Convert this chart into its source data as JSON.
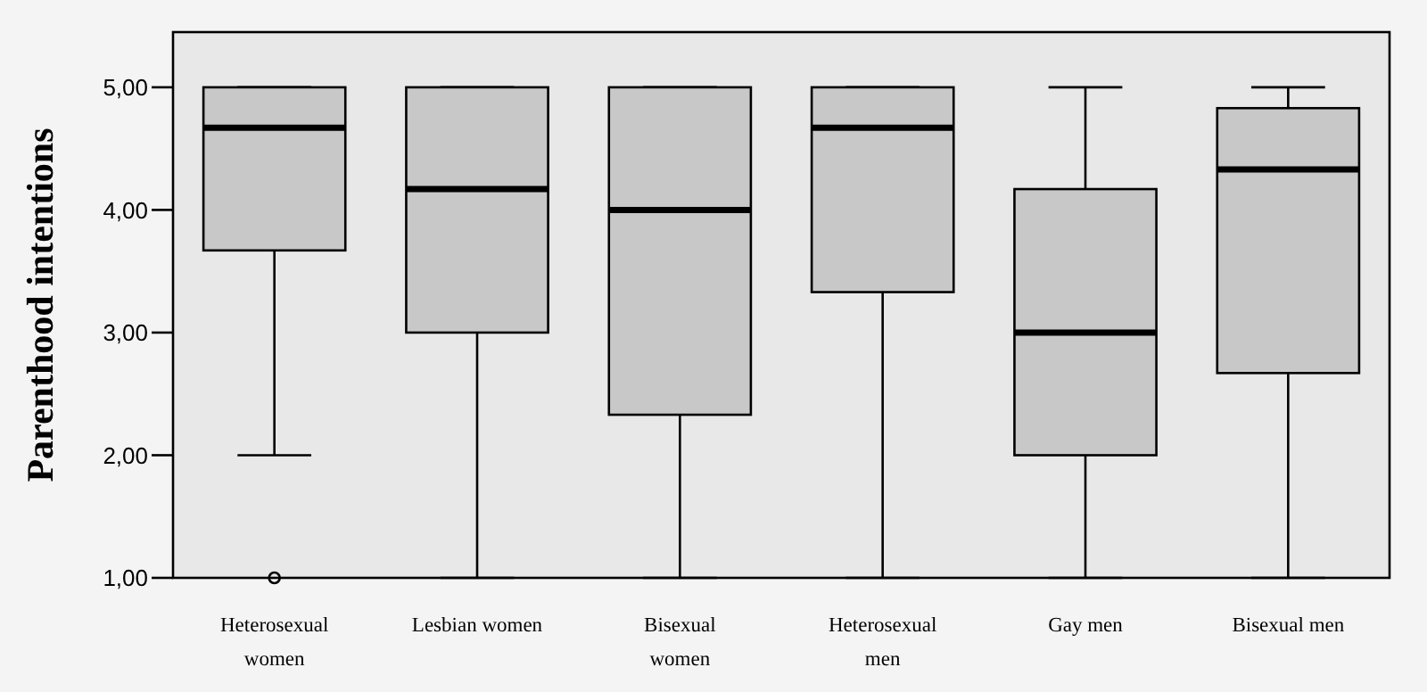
{
  "chart_data": {
    "type": "box",
    "ylabel": "Parenthood intentions",
    "categories": [
      "Heterosexual women",
      "Lesbian women",
      "Bisexual women",
      "Heterosexual men",
      "Gay men",
      "Bisexual men"
    ],
    "boxes": [
      {
        "low": 2,
        "q1": 3.67,
        "median": 4.67,
        "q3": 5,
        "high": 5,
        "outliers": [
          1
        ]
      },
      {
        "low": 1,
        "q1": 3,
        "median": 4.17,
        "q3": 5,
        "high": 5
      },
      {
        "low": 1,
        "q1": 2.33,
        "median": 4,
        "q3": 5,
        "high": 5
      },
      {
        "low": 1,
        "q1": 3.33,
        "median": 4.67,
        "q3": 5,
        "high": 5
      },
      {
        "low": 1,
        "q1": 2,
        "median": 3,
        "q3": 4.17,
        "high": 5
      },
      {
        "low": 1,
        "q1": 2.67,
        "median": 4.33,
        "q3": 4.83,
        "high": 5
      }
    ],
    "color": "#c8c8c8",
    "ylim": [
      1,
      5.45
    ],
    "yticks": [
      {
        "value": 1,
        "label": "1,00"
      },
      {
        "value": 2,
        "label": "2,00"
      },
      {
        "value": 3,
        "label": "3,00"
      },
      {
        "value": 4,
        "label": "4,00"
      },
      {
        "value": 5,
        "label": "5,00"
      }
    ],
    "grid": false,
    "marker": "circle"
  }
}
